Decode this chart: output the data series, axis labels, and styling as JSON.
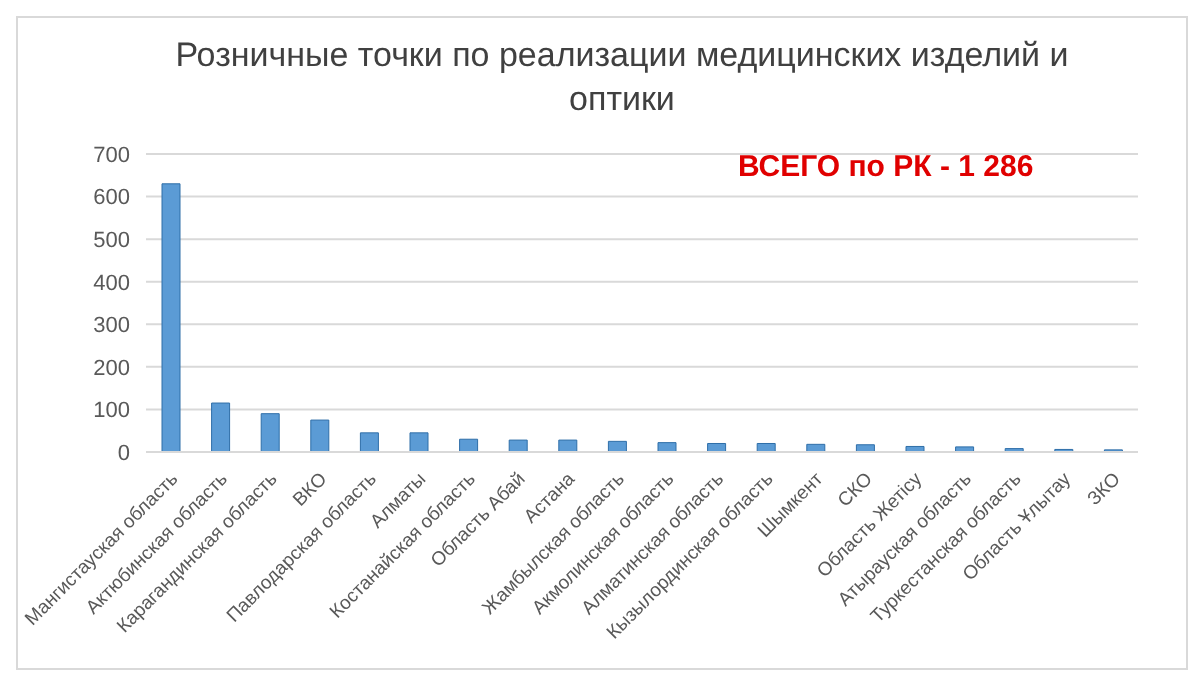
{
  "chart_data": {
    "type": "bar",
    "title": "Розничные точки по реализации медицинских изделий и оптики",
    "categories": [
      "Мангистауская область",
      "Актюбинская область",
      "Карагандинская область",
      "ВКО",
      "Павлодарская область",
      "Алматы",
      "Костанайская область",
      "Область Абай",
      "Астана",
      "Жамбылская область",
      "Акмолинская область",
      "Алматинская область",
      "Кызылординская область",
      "Шымкент",
      "СКО",
      "Область Жетісу",
      "Атырауская область",
      "Туркестанская область",
      "Область Ұлытау",
      "ЗКО"
    ],
    "values": [
      630,
      115,
      90,
      75,
      45,
      45,
      30,
      28,
      28,
      25,
      22,
      20,
      20,
      18,
      17,
      13,
      12,
      8,
      6,
      5
    ],
    "color": "#5b9bd5",
    "ylim": [
      0,
      700
    ],
    "yticks": [
      0,
      100,
      200,
      300,
      400,
      500,
      600,
      700
    ],
    "grid": "y",
    "annotations": [
      "ВСЕГО по РК - 1 286"
    ]
  }
}
